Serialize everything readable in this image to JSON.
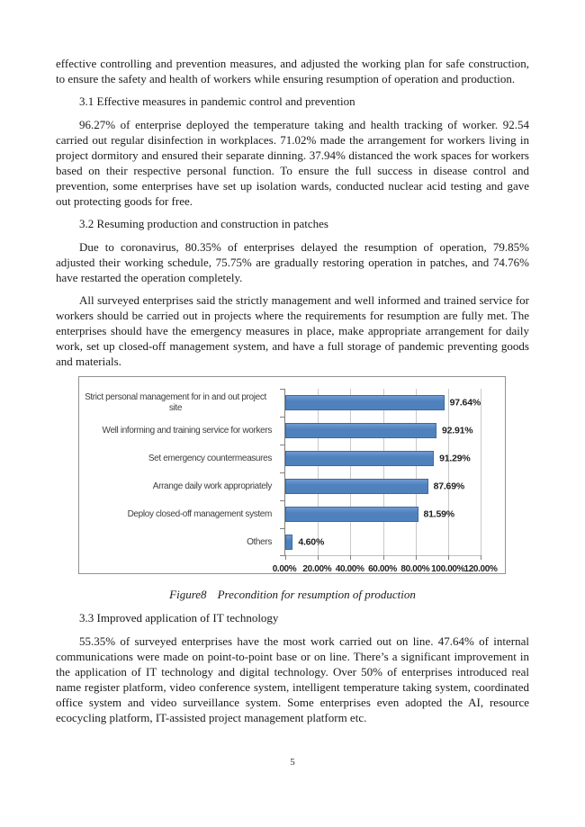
{
  "page": {
    "number": "5"
  },
  "content": {
    "para_intro": "effective controlling and prevention measures, and adjusted the working plan for safe construction, to ensure the safety and health of workers while ensuring resumption of operation and production.",
    "heading_3_1": "3.1 Effective measures in pandemic control and prevention",
    "para_3_1": "96.27% of enterprise deployed the temperature taking and health tracking of worker. 92.54 carried out regular disinfection in workplaces. 71.02% made the arrangement for workers living in project dormitory and ensured their separate dinning. 37.94% distanced the work spaces for workers based on their respective personal function. To ensure the full success in disease control and prevention, some enterprises have set up isolation wards, conducted nuclear acid testing and gave out protecting goods for free.",
    "heading_3_2": "3.2 Resuming production and construction in patches",
    "para_3_2a": "Due to coronavirus, 80.35% of enterprises delayed the resumption of operation, 79.85% adjusted their working schedule, 75.75% are gradually restoring operation in patches, and 74.76% have restarted the operation completely.",
    "para_3_2b": "All surveyed enterprises said the strictly management and well informed and trained service for workers should be carried out in projects where the requirements for resumption are fully met. The enterprises should have the emergency measures in place, make appropriate arrangement for daily work, set up closed-off management system, and have a full storage of pandemic preventing goods and materials.",
    "heading_3_3": "3.3 Improved application of IT technology",
    "para_3_3": "55.35% of surveyed enterprises have the most work carried out on line. 47.64% of internal communications were made on point-to-point base or on line. There’s a significant improvement in the application of IT technology and digital technology. Over 50% of enterprises introduced real name register platform, video conference system, intelligent temperature taking system, coordinated office system and video surveillance system. Some enterprises even adopted the AI, resource ecocycling platform, IT-assisted project management platform etc."
  },
  "figure": {
    "label": "Figure8",
    "title": "Precondition for resumption of production"
  },
  "chart_data": {
    "type": "bar",
    "orientation": "horizontal",
    "title": "",
    "categories": [
      "Strict personal management for in and out project site",
      "Well informing and training service for workers",
      "Set emergency countermeasures",
      "Arrange daily work appropriately",
      "Deploy closed-off management system",
      "Others"
    ],
    "values": [
      97.64,
      92.91,
      91.29,
      87.69,
      81.59,
      4.6
    ],
    "data_labels": [
      "97.64%",
      "92.91%",
      "91.29%",
      "87.69%",
      "81.59%",
      "4.60%"
    ],
    "x_ticks": [
      "0.00%",
      "20.00%",
      "40.00%",
      "60.00%",
      "80.00%",
      "100.00%",
      "120.00%"
    ],
    "xlim": [
      0,
      120
    ],
    "grid": true,
    "legend": false,
    "bar_color": "#4f81bd",
    "bar_border_color": "#3c6aa0",
    "gridline_color": "#c9c9c9"
  }
}
